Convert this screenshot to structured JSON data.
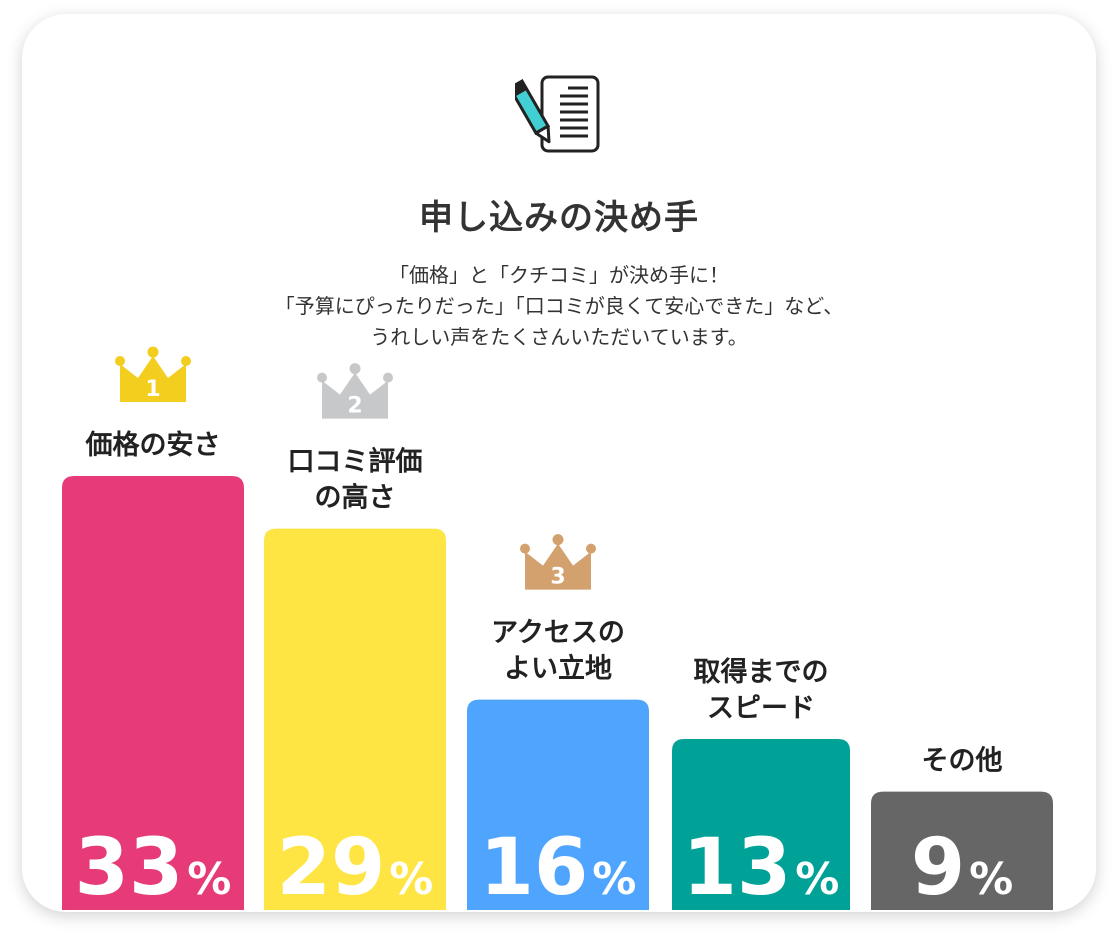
{
  "header": {
    "icon": "document-pen-icon",
    "title": "申し込みの決め手",
    "description": [
      "「価格」と「クチコミ」が決め手に！",
      "「予算にぴったりだった」「口コミが良くて安心できた」など、",
      "うれしい声をたくさんいただいています。"
    ]
  },
  "chart_data": {
    "type": "bar",
    "categories": [
      "価格の安さ",
      "口コミ評価の高さ",
      "アクセスのよい立地",
      "取得までのスピード",
      "その他"
    ],
    "label_lines": [
      [
        "価格の安さ"
      ],
      [
        "口コミ評価",
        "の高さ"
      ],
      [
        "アクセスの",
        "よい立地"
      ],
      [
        "取得までの",
        "スピード"
      ],
      [
        "その他"
      ]
    ],
    "values": [
      33,
      29,
      16,
      13,
      9
    ],
    "unit": "%",
    "colors": [
      "#e63b78",
      "#ffe544",
      "#4fa4fd",
      "#00a197",
      "#666666"
    ],
    "ranks": [
      {
        "rank": "1",
        "color": "#f3ce1e",
        "icon": "gold-crown-icon"
      },
      {
        "rank": "2",
        "color": "#c6c8ca",
        "icon": "silver-crown-icon"
      },
      {
        "rank": "3",
        "color": "#d3a16d",
        "icon": "bronze-crown-icon"
      }
    ]
  }
}
